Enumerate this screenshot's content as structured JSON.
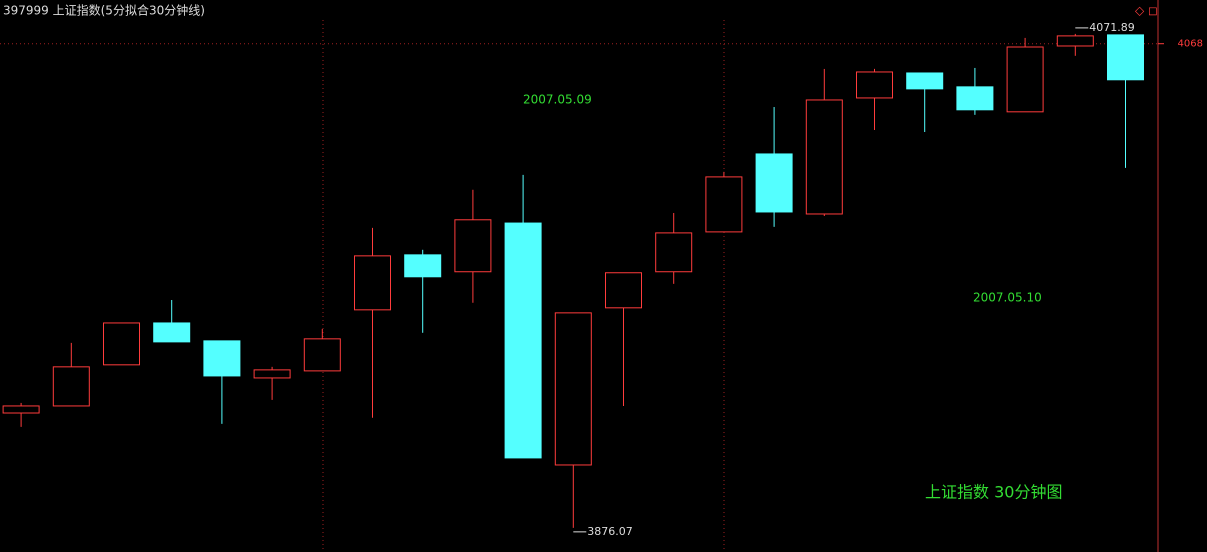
{
  "chart_data": {
    "type": "candlestick",
    "title": "397999 上证指数(5分拟合30分钟线)",
    "annotations": [
      "2007.05.09",
      "2007.05.10",
      "上证指数 30分钟图"
    ],
    "high_label": "4071.89",
    "low_label": "3876.07",
    "open": [
      3921.6,
      3924.4,
      3940.7,
      3957.3,
      3950.2,
      3935.5,
      3938.3,
      3962.5,
      3984.3,
      3977.6,
      3996.9,
      3901.0,
      3963.3,
      3977.6,
      3993.4,
      4024.3,
      4000.5,
      4046.5,
      4056.4,
      4050.9,
      4041.0,
      4067.1,
      4071.5
    ],
    "high": [
      3925.6,
      3949.4,
      3957.3,
      3966.4,
      3950.2,
      3939.9,
      3954.9,
      3995.0,
      3986.3,
      4010.1,
      4016.0,
      3961.3,
      3977.2,
      4000.9,
      4017.2,
      4042.9,
      4058.0,
      4058.0,
      4056.4,
      4058.4,
      4070.3,
      4071.89,
      4071.5
    ],
    "low": [
      3916.1,
      3924.4,
      3940.7,
      3949.8,
      3917.3,
      3926.8,
      3938.3,
      3919.7,
      3953.4,
      3965.3,
      3903.8,
      3876.07,
      3924.4,
      3972.8,
      3993.4,
      3995.4,
      3999.7,
      4033.8,
      4033.0,
      4039.8,
      4041.0,
      4063.2,
      4018.8
    ],
    "close": [
      3924.4,
      3939.9,
      3957.3,
      3949.8,
      3936.3,
      3938.7,
      3951.0,
      3983.9,
      3975.6,
      3998.2,
      3903.8,
      3961.3,
      3977.2,
      3993.0,
      4015.2,
      4001.3,
      4045.7,
      4056.8,
      4050.1,
      4041.8,
      4066.7,
      4071.1,
      4053.7
    ],
    "up_color": "#ff3c3c",
    "down_color": "#54ffff",
    "ylim": [
      3866.5,
      4077.4
    ],
    "yticks": [
      4068
    ],
    "grid": true
  }
}
